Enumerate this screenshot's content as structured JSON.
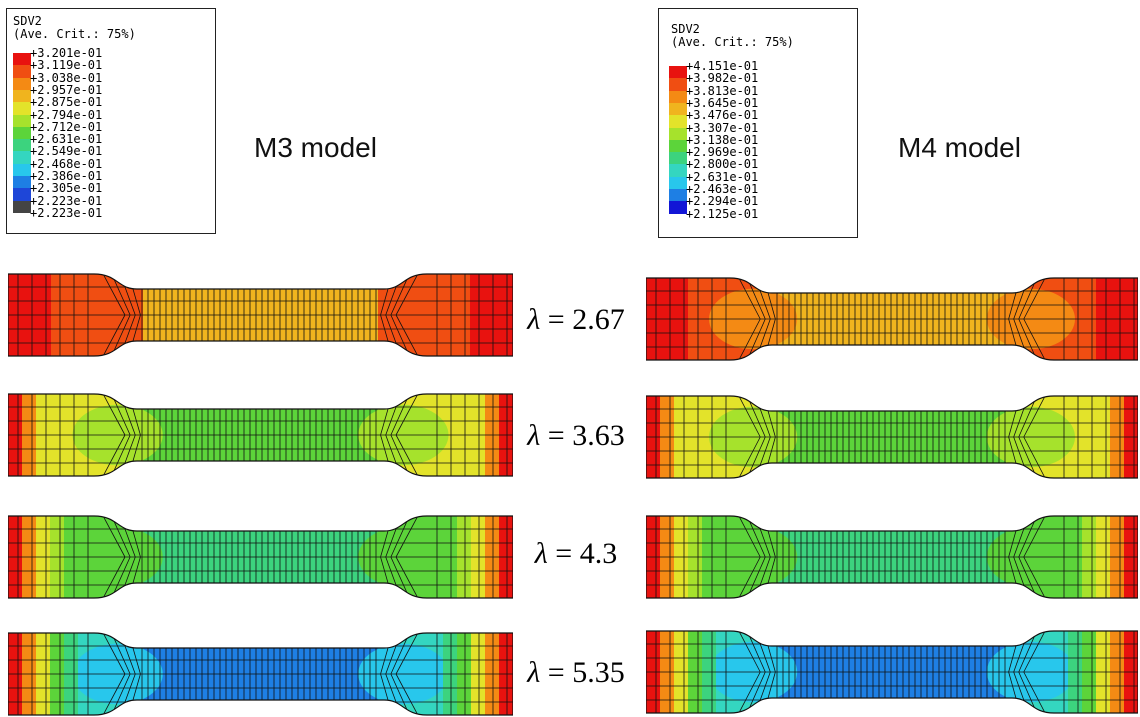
{
  "colors": {
    "c0": "#E8120F",
    "c1": "#F04E12",
    "c2": "#F48A14",
    "c3": "#F0B41E",
    "c4": "#E3E32A",
    "c5": "#A6E22C",
    "c6": "#5CD43A",
    "c7": "#3CD37E",
    "c8": "#34D6C0",
    "c9": "#28C7EC",
    "c10": "#1E7FE4",
    "c11": "#1E46D8",
    "c12": "#1216D6",
    "c13": "#444444",
    "mesh": "#111111"
  },
  "legends": [
    {
      "variable": "SDV2",
      "averaging": "(Ave. Crit.: 75%)",
      "values": [
        "+3.201e-01",
        "+3.119e-01",
        "+3.038e-01",
        "+2.957e-01",
        "+2.875e-01",
        "+2.794e-01",
        "+2.712e-01",
        "+2.631e-01",
        "+2.549e-01",
        "+2.468e-01",
        "+2.386e-01",
        "+2.305e-01",
        "+2.223e-01",
        "+2.223e-01"
      ],
      "swatches": [
        "c0",
        "c1",
        "c2",
        "c3",
        "c4",
        "c5",
        "c6",
        "c7",
        "c8",
        "c9",
        "c10",
        "c11",
        "c13"
      ]
    },
    {
      "variable": "SDV2",
      "averaging": "(Ave. Crit.: 75%)",
      "values": [
        "+4.151e-01",
        "+3.982e-01",
        "+3.813e-01",
        "+3.645e-01",
        "+3.476e-01",
        "+3.307e-01",
        "+3.138e-01",
        "+2.969e-01",
        "+2.800e-01",
        "+2.631e-01",
        "+2.463e-01",
        "+2.294e-01",
        "+2.125e-01"
      ],
      "swatches": [
        "c0",
        "c1",
        "c2",
        "c3",
        "c4",
        "c5",
        "c6",
        "c7",
        "c8",
        "c9",
        "c10",
        "c12"
      ]
    }
  ],
  "models": [
    "M3 model",
    "M4 model"
  ],
  "stretch_labels": [
    {
      "symbol": "λ",
      "text": " = 2.67"
    },
    {
      "symbol": "λ",
      "text": " = 3.63"
    },
    {
      "symbol": "λ",
      "text": " = 4.3"
    },
    {
      "symbol": "λ",
      "text": " = 5.35"
    }
  ],
  "specimens": [
    [
      {
        "grip": [
          "c0"
        ],
        "shoulder": "c1",
        "gauge": "c3",
        "blob": null
      },
      {
        "grip": [
          "c0",
          "c2",
          "c4"
        ],
        "shoulder": "c4",
        "gauge": "c6",
        "blob": "c5"
      },
      {
        "grip": [
          "c0",
          "c2",
          "c4",
          "c5"
        ],
        "shoulder": "c6",
        "gauge": "c7",
        "blob": "c6"
      },
      {
        "grip": [
          "c0",
          "c2",
          "c4",
          "c6",
          "c7"
        ],
        "shoulder": "c8",
        "gauge": "c10",
        "blob": "c9"
      }
    ],
    [
      {
        "grip": [
          "c0"
        ],
        "shoulder": "c1",
        "gauge": "c3",
        "blob": "c2"
      },
      {
        "grip": [
          "c0",
          "c2",
          "c4"
        ],
        "shoulder": "c4",
        "gauge": "c6",
        "blob": "c5"
      },
      {
        "grip": [
          "c0",
          "c2",
          "c4",
          "c5"
        ],
        "shoulder": "c6",
        "gauge": "c7",
        "blob": "c6"
      },
      {
        "grip": [
          "c0",
          "c2",
          "c4",
          "c6",
          "c7"
        ],
        "shoulder": "c8",
        "gauge": "c10",
        "blob": "c9"
      }
    ]
  ]
}
